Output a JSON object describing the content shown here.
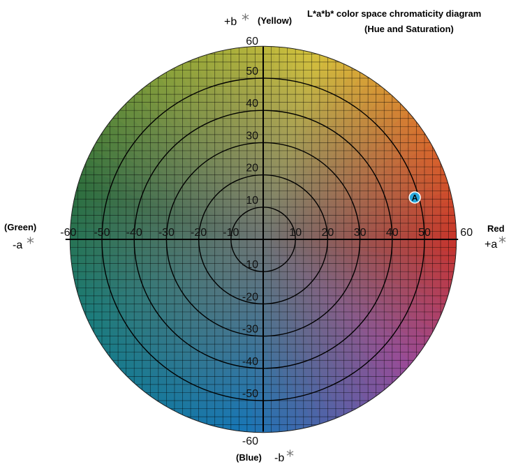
{
  "title": {
    "line1": "L*a*b* color space chromaticity diagram",
    "line2": "(Hue and Saturation)"
  },
  "axes": {
    "top": {
      "sign": "+b",
      "star": "*",
      "name": "(Yellow)"
    },
    "bottom": {
      "name": "(Blue)",
      "sign": "-b",
      "star": "*"
    },
    "left": {
      "name": "(Green)",
      "sign": "-a",
      "star": "*"
    },
    "right": {
      "name": "Red",
      "sign": "+a",
      "star": "*"
    }
  },
  "scale": {
    "range": [
      -60,
      60
    ],
    "a_ticks": [
      -60,
      -50,
      -40,
      -30,
      -20,
      -10,
      10,
      20,
      30,
      40,
      50,
      60
    ],
    "b_ticks": [
      60,
      50,
      40,
      30,
      20,
      10,
      -10,
      -20,
      -30,
      -40,
      -50,
      -60
    ],
    "circle_radii": [
      10,
      20,
      30,
      40,
      50
    ],
    "grid_step": 2.5
  },
  "point": {
    "label": "A",
    "a": 47,
    "b": 13
  },
  "colors": {
    "yellow": "#d6c23c",
    "orange": "#d8682c",
    "red": "#c8342a",
    "magenta": "#9a4a98",
    "blue": "#1776b6",
    "teal": "#1a7c7c",
    "green": "#2e6e3c",
    "yellow_green": "#8aa23a",
    "gray": "#6d7474",
    "point": "#2aa7dc"
  }
}
